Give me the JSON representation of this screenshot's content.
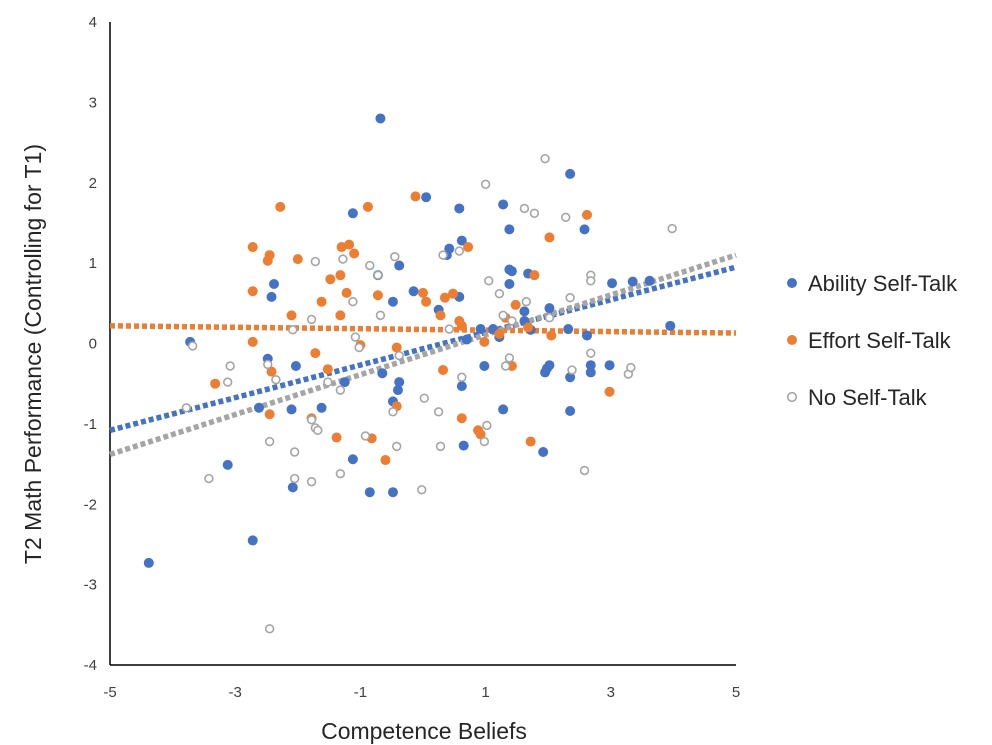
{
  "chart_data": {
    "type": "scatter",
    "title": "",
    "xlabel": "Competence  Beliefs",
    "ylabel": "T2 Math Performance (Controlling for T1)",
    "xlim": [
      -5,
      5
    ],
    "ylim": [
      -4,
      4
    ],
    "x_ticks": [
      "-5",
      "-3",
      "-1",
      "1",
      "3",
      "5"
    ],
    "y_ticks": [
      "4",
      "3",
      "2",
      "1",
      "0",
      "-1",
      "-2",
      "-3",
      "-4"
    ],
    "grid": false,
    "legend_position": "right",
    "series": [
      {
        "name": "Ability Self-Talk",
        "color": "#4472C4",
        "marker": "filled-circle",
        "trendline": {
          "x": [
            -5,
            5
          ],
          "y": [
            -1.08,
            0.95
          ]
        },
        "points": [
          [
            -4.38,
            -2.73
          ],
          [
            -3.72,
            0.02
          ],
          [
            -3.12,
            -1.51
          ],
          [
            -2.72,
            -2.45
          ],
          [
            -2.62,
            -0.8
          ],
          [
            -2.48,
            -0.19
          ],
          [
            -2.42,
            0.58
          ],
          [
            -2.38,
            0.74
          ],
          [
            -2.1,
            -0.82
          ],
          [
            -2.03,
            -0.28
          ],
          [
            -2.08,
            -1.79
          ],
          [
            -1.62,
            -0.8
          ],
          [
            -1.12,
            1.62
          ],
          [
            -1.12,
            -1.44
          ],
          [
            -1.25,
            -0.48
          ],
          [
            -0.85,
            -1.85
          ],
          [
            -0.68,
            2.8
          ],
          [
            -0.72,
            0.85
          ],
          [
            -0.65,
            -0.37
          ],
          [
            -0.48,
            -1.85
          ],
          [
            -0.48,
            0.52
          ],
          [
            -0.48,
            -0.72
          ],
          [
            -0.38,
            0.97
          ],
          [
            -0.38,
            -0.48
          ],
          [
            -0.4,
            -0.58
          ],
          [
            -0.15,
            0.65
          ],
          [
            0.05,
            1.82
          ],
          [
            0.25,
            0.42
          ],
          [
            0.38,
            1.1
          ],
          [
            0.42,
            1.18
          ],
          [
            0.58,
            1.68
          ],
          [
            0.62,
            1.28
          ],
          [
            0.62,
            -0.53
          ],
          [
            0.65,
            -1.27
          ],
          [
            0.58,
            0.58
          ],
          [
            0.7,
            0.05
          ],
          [
            0.92,
            0.18
          ],
          [
            0.98,
            -0.28
          ],
          [
            1.12,
            0.18
          ],
          [
            1.22,
            0.08
          ],
          [
            1.28,
            1.73
          ],
          [
            1.28,
            -0.82
          ],
          [
            1.38,
            1.42
          ],
          [
            1.38,
            0.92
          ],
          [
            1.42,
            0.9
          ],
          [
            1.38,
            0.74
          ],
          [
            1.62,
            0.4
          ],
          [
            1.62,
            0.28
          ],
          [
            1.68,
            0.87
          ],
          [
            1.72,
            0.17
          ],
          [
            1.92,
            -1.35
          ],
          [
            1.95,
            -0.36
          ],
          [
            1.98,
            -0.31
          ],
          [
            2.02,
            0.44
          ],
          [
            2.02,
            -0.27
          ],
          [
            2.32,
            0.18
          ],
          [
            2.35,
            2.11
          ],
          [
            2.35,
            -0.42
          ],
          [
            2.35,
            -0.84
          ],
          [
            2.58,
            1.42
          ],
          [
            2.62,
            0.1
          ],
          [
            2.68,
            -0.27
          ],
          [
            2.68,
            -0.36
          ],
          [
            2.98,
            -0.27
          ],
          [
            3.02,
            0.75
          ],
          [
            3.35,
            0.77
          ],
          [
            3.62,
            0.78
          ],
          [
            3.95,
            0.22
          ]
        ]
      },
      {
        "name": "Effort Self-Talk",
        "color": "#ED7D31",
        "marker": "filled-circle",
        "trendline": {
          "x": [
            -5,
            5
          ],
          "y": [
            0.22,
            0.13
          ]
        },
        "points": [
          [
            -3.32,
            -0.5
          ],
          [
            -2.72,
            1.2
          ],
          [
            -2.72,
            0.65
          ],
          [
            -2.48,
            1.03
          ],
          [
            -2.45,
            1.1
          ],
          [
            -2.72,
            0.02
          ],
          [
            -2.45,
            -0.88
          ],
          [
            -2.42,
            -0.35
          ],
          [
            -2.28,
            1.7
          ],
          [
            -2.1,
            0.35
          ],
          [
            -2.0,
            1.05
          ],
          [
            -1.78,
            -0.93
          ],
          [
            -1.72,
            -0.12
          ],
          [
            -1.62,
            0.52
          ],
          [
            -1.52,
            -0.32
          ],
          [
            -1.48,
            0.8
          ],
          [
            -1.38,
            -1.17
          ],
          [
            -1.32,
            0.35
          ],
          [
            -1.32,
            0.85
          ],
          [
            -1.3,
            1.2
          ],
          [
            -1.22,
            0.63
          ],
          [
            -1.18,
            1.23
          ],
          [
            -1.1,
            1.12
          ],
          [
            -1.0,
            -0.02
          ],
          [
            -0.88,
            1.7
          ],
          [
            -0.82,
            -1.18
          ],
          [
            -0.72,
            0.6
          ],
          [
            -0.6,
            -1.45
          ],
          [
            -0.42,
            -0.78
          ],
          [
            -0.42,
            -0.05
          ],
          [
            -0.12,
            1.83
          ],
          [
            0.0,
            0.63
          ],
          [
            0.05,
            0.52
          ],
          [
            0.28,
            0.35
          ],
          [
            0.32,
            -0.33
          ],
          [
            0.35,
            0.57
          ],
          [
            0.48,
            0.62
          ],
          [
            0.58,
            0.28
          ],
          [
            0.62,
            -0.93
          ],
          [
            0.62,
            0.22
          ],
          [
            0.72,
            1.2
          ],
          [
            0.88,
            -1.08
          ],
          [
            0.92,
            -1.13
          ],
          [
            0.98,
            0.02
          ],
          [
            1.22,
            0.12
          ],
          [
            1.32,
            0.32
          ],
          [
            1.48,
            0.48
          ],
          [
            1.42,
            -0.28
          ],
          [
            1.72,
            -1.22
          ],
          [
            1.78,
            0.85
          ],
          [
            2.02,
            1.32
          ],
          [
            2.05,
            0.1
          ],
          [
            2.62,
            1.6
          ],
          [
            2.98,
            -0.6
          ],
          [
            1.68,
            0.2
          ]
        ]
      },
      {
        "name": "No Self-Talk",
        "color": "#A5A5A5",
        "marker": "hollow-circle",
        "trendline": {
          "x": [
            -5,
            5
          ],
          "y": [
            -1.38,
            1.1
          ]
        },
        "points": [
          [
            -3.68,
            -0.03
          ],
          [
            -3.78,
            -0.8
          ],
          [
            -3.42,
            -1.68
          ],
          [
            -3.12,
            -0.48
          ],
          [
            -3.08,
            -0.28
          ],
          [
            -2.48,
            -0.26
          ],
          [
            -2.45,
            -1.22
          ],
          [
            -2.45,
            -3.55
          ],
          [
            -2.35,
            -0.45
          ],
          [
            -2.08,
            0.17
          ],
          [
            -2.05,
            -1.68
          ],
          [
            -2.05,
            -1.35
          ],
          [
            -1.78,
            -0.95
          ],
          [
            -1.72,
            1.02
          ],
          [
            -1.72,
            -1.05
          ],
          [
            -1.68,
            -1.08
          ],
          [
            -1.78,
            0.3
          ],
          [
            -1.78,
            -1.72
          ],
          [
            -1.52,
            -0.48
          ],
          [
            -1.32,
            -1.62
          ],
          [
            -1.32,
            -0.58
          ],
          [
            -1.28,
            1.05
          ],
          [
            -1.12,
            0.52
          ],
          [
            -1.08,
            0.08
          ],
          [
            -1.02,
            -0.05
          ],
          [
            -0.92,
            -1.15
          ],
          [
            -0.85,
            0.97
          ],
          [
            -0.72,
            0.85
          ],
          [
            -0.68,
            0.35
          ],
          [
            -0.48,
            -0.85
          ],
          [
            -0.45,
            1.08
          ],
          [
            -0.42,
            -1.28
          ],
          [
            -0.38,
            -0.15
          ],
          [
            -0.02,
            -1.82
          ],
          [
            0.02,
            -0.68
          ],
          [
            0.25,
            -0.85
          ],
          [
            0.28,
            -1.28
          ],
          [
            0.32,
            1.1
          ],
          [
            0.42,
            0.18
          ],
          [
            0.58,
            1.15
          ],
          [
            0.62,
            -0.42
          ],
          [
            0.98,
            -1.22
          ],
          [
            1.0,
            1.98
          ],
          [
            1.02,
            -1.02
          ],
          [
            1.05,
            0.78
          ],
          [
            1.22,
            0.62
          ],
          [
            1.28,
            0.35
          ],
          [
            1.32,
            -0.28
          ],
          [
            1.38,
            -0.18
          ],
          [
            1.42,
            0.28
          ],
          [
            1.62,
            1.68
          ],
          [
            1.65,
            0.52
          ],
          [
            1.78,
            1.62
          ],
          [
            1.95,
            2.3
          ],
          [
            2.02,
            0.32
          ],
          [
            2.28,
            1.57
          ],
          [
            2.35,
            0.57
          ],
          [
            2.38,
            -0.33
          ],
          [
            2.58,
            -1.58
          ],
          [
            2.68,
            -0.12
          ],
          [
            2.68,
            0.85
          ],
          [
            2.68,
            0.78
          ],
          [
            3.28,
            -0.38
          ],
          [
            3.32,
            -0.3
          ],
          [
            3.98,
            1.43
          ]
        ]
      }
    ]
  }
}
